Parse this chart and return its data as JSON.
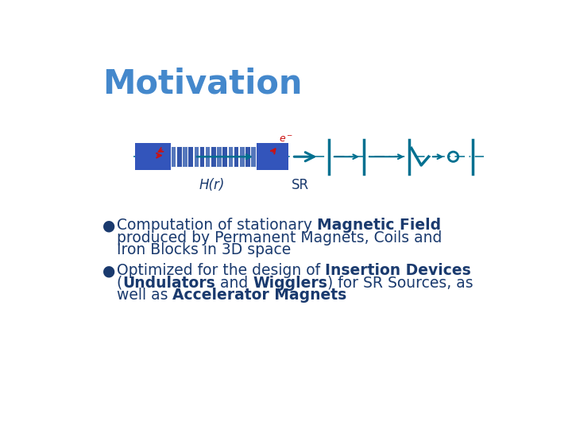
{
  "title": "Motivation",
  "title_color": "#4488CC",
  "title_fontsize": 30,
  "background_color": "#FFFFFF",
  "hr_label": "H(r)",
  "sr_label": "SR",
  "teal_color": "#007090",
  "blue_rect_color": "#3355BB",
  "coil_color1": "#5577BB",
  "coil_color2": "#3355AA",
  "dark_color": "#1a3a6e",
  "red_color": "#CC1111",
  "bullet_fontsize": 13.5,
  "text_color": "#1a3a6e"
}
